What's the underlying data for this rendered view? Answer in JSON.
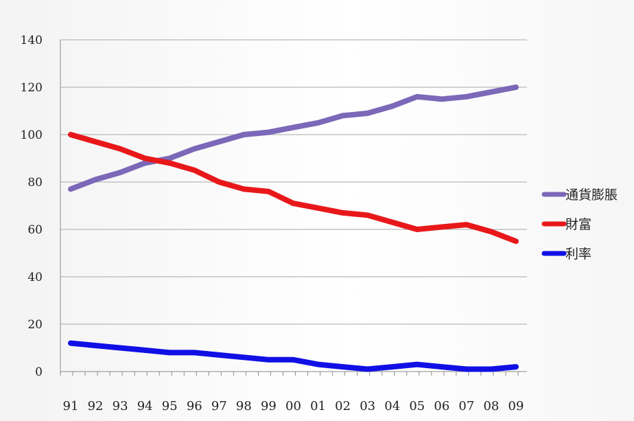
{
  "chart_data": {
    "type": "line",
    "title": "",
    "xlabel": "",
    "ylabel": "",
    "categories": [
      "91",
      "92",
      "93",
      "94",
      "95",
      "96",
      "97",
      "98",
      "99",
      "00",
      "01",
      "02",
      "03",
      "04",
      "05",
      "06",
      "07",
      "08",
      "09"
    ],
    "y_ticks": [
      "0",
      "20",
      "40",
      "60",
      "80",
      "100",
      "120",
      "140"
    ],
    "ylim": [
      0,
      140
    ],
    "grid": true,
    "legend_position": "right",
    "series": [
      {
        "name": "通貨膨脹",
        "color": "#7b68b8",
        "values": [
          77,
          81,
          84,
          88,
          90,
          94,
          97,
          100,
          101,
          103,
          105,
          108,
          109,
          112,
          116,
          115,
          116,
          118,
          120
        ]
      },
      {
        "name": "財富",
        "color": "#e8181a",
        "values": [
          100,
          97,
          94,
          90,
          88,
          85,
          80,
          77,
          76,
          71,
          69,
          67,
          66,
          63,
          60,
          61,
          62,
          59,
          55
        ]
      },
      {
        "name": "利率",
        "color": "#1010e6",
        "values": [
          12,
          11,
          10,
          9,
          8,
          8,
          7,
          6,
          5,
          5,
          3,
          2,
          1,
          2,
          3,
          2,
          1,
          1,
          2
        ]
      }
    ]
  }
}
